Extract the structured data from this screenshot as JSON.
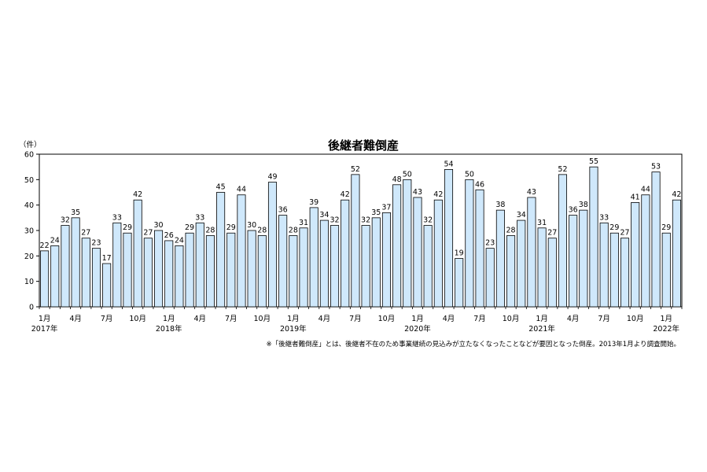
{
  "chart_data": {
    "type": "bar",
    "title": "後継者難倒産",
    "unit_label": "（件）",
    "ylim": [
      0,
      60
    ],
    "yticks": [
      0,
      10,
      20,
      30,
      40,
      50,
      60
    ],
    "grid": false,
    "bar_color": "#cfe8fb",
    "values": [
      22,
      24,
      32,
      35,
      27,
      23,
      17,
      33,
      29,
      42,
      27,
      30,
      26,
      24,
      29,
      33,
      28,
      45,
      29,
      44,
      30,
      28,
      49,
      36,
      28,
      31,
      39,
      34,
      32,
      42,
      52,
      32,
      35,
      37,
      48,
      50,
      43,
      32,
      42,
      54,
      19,
      50,
      46,
      23,
      38,
      28,
      34,
      43,
      31,
      27,
      52,
      36,
      38,
      55,
      33,
      29,
      27,
      41,
      44,
      53,
      29,
      42
    ],
    "month_labels": [
      {
        "index": 0,
        "text": "1月"
      },
      {
        "index": 3,
        "text": "4月"
      },
      {
        "index": 6,
        "text": "7月"
      },
      {
        "index": 9,
        "text": "10月"
      },
      {
        "index": 12,
        "text": "1月"
      },
      {
        "index": 15,
        "text": "4月"
      },
      {
        "index": 18,
        "text": "7月"
      },
      {
        "index": 21,
        "text": "10月"
      },
      {
        "index": 24,
        "text": "1月"
      },
      {
        "index": 27,
        "text": "4月"
      },
      {
        "index": 30,
        "text": "7月"
      },
      {
        "index": 33,
        "text": "10月"
      },
      {
        "index": 36,
        "text": "1月"
      },
      {
        "index": 39,
        "text": "4月"
      },
      {
        "index": 42,
        "text": "7月"
      },
      {
        "index": 45,
        "text": "10月"
      },
      {
        "index": 48,
        "text": "1月"
      },
      {
        "index": 51,
        "text": "4月"
      },
      {
        "index": 54,
        "text": "7月"
      },
      {
        "index": 57,
        "text": "10月"
      },
      {
        "index": 60,
        "text": "1月"
      }
    ],
    "year_labels": [
      {
        "index": 0,
        "text": "2017年"
      },
      {
        "index": 12,
        "text": "2018年"
      },
      {
        "index": 24,
        "text": "2019年"
      },
      {
        "index": 36,
        "text": "2020年"
      },
      {
        "index": 48,
        "text": "2021年"
      },
      {
        "index": 60,
        "text": "2022年"
      }
    ],
    "note": "※「後継者難倒産」とは、後継者不在のため事業継続の見込みが立たなくなったことなどが要因となった倒産。2013年1月より調査開始。"
  }
}
